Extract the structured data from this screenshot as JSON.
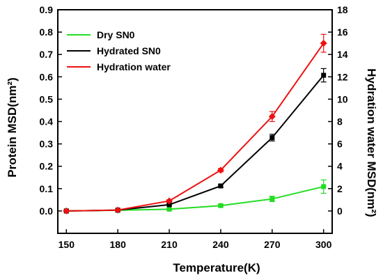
{
  "chart_data": {
    "type": "line",
    "xlabel": "Temperature(K)",
    "ylabel_left": "Protein MSD(nm²)",
    "ylabel_right": "Hydration water MSD(nm²)",
    "x": [
      150,
      180,
      210,
      240,
      270,
      300
    ],
    "xlim": [
      145,
      305
    ],
    "ylim_left": [
      -0.1,
      0.9
    ],
    "ylim_right": [
      -2,
      18
    ],
    "xticks": [
      "150",
      "180",
      "210",
      "240",
      "270",
      "300"
    ],
    "yticks_left": [
      "0.0",
      "0.1",
      "0.2",
      "0.3",
      "0.4",
      "0.5",
      "0.6",
      "0.7",
      "0.8",
      "0.9"
    ],
    "yticks_right": [
      "0",
      "2",
      "4",
      "6",
      "8",
      "10",
      "12",
      "14",
      "16",
      "18"
    ],
    "legend_position": "top-left",
    "series": [
      {
        "name": "Dry SN0",
        "axis": "left",
        "color": "#22dd22",
        "marker": "square",
        "values": [
          0.0,
          0.003,
          0.008,
          0.024,
          0.054,
          0.109
        ],
        "errors": [
          0.002,
          0.002,
          0.003,
          0.005,
          0.012,
          0.03
        ]
      },
      {
        "name": "Hydrated SN0",
        "axis": "left",
        "color": "#000000",
        "marker": "square",
        "values": [
          0.0,
          0.004,
          0.028,
          0.112,
          0.328,
          0.607
        ],
        "errors": [
          0.002,
          0.002,
          0.004,
          0.006,
          0.015,
          0.03
        ]
      },
      {
        "name": "Hydration water",
        "axis": "right",
        "color": "#ee1111",
        "marker": "diamond",
        "values": [
          0.0,
          0.08,
          0.9,
          3.65,
          8.45,
          15.0
        ],
        "errors": [
          0.05,
          0.05,
          0.1,
          0.15,
          0.45,
          0.8
        ]
      }
    ]
  }
}
